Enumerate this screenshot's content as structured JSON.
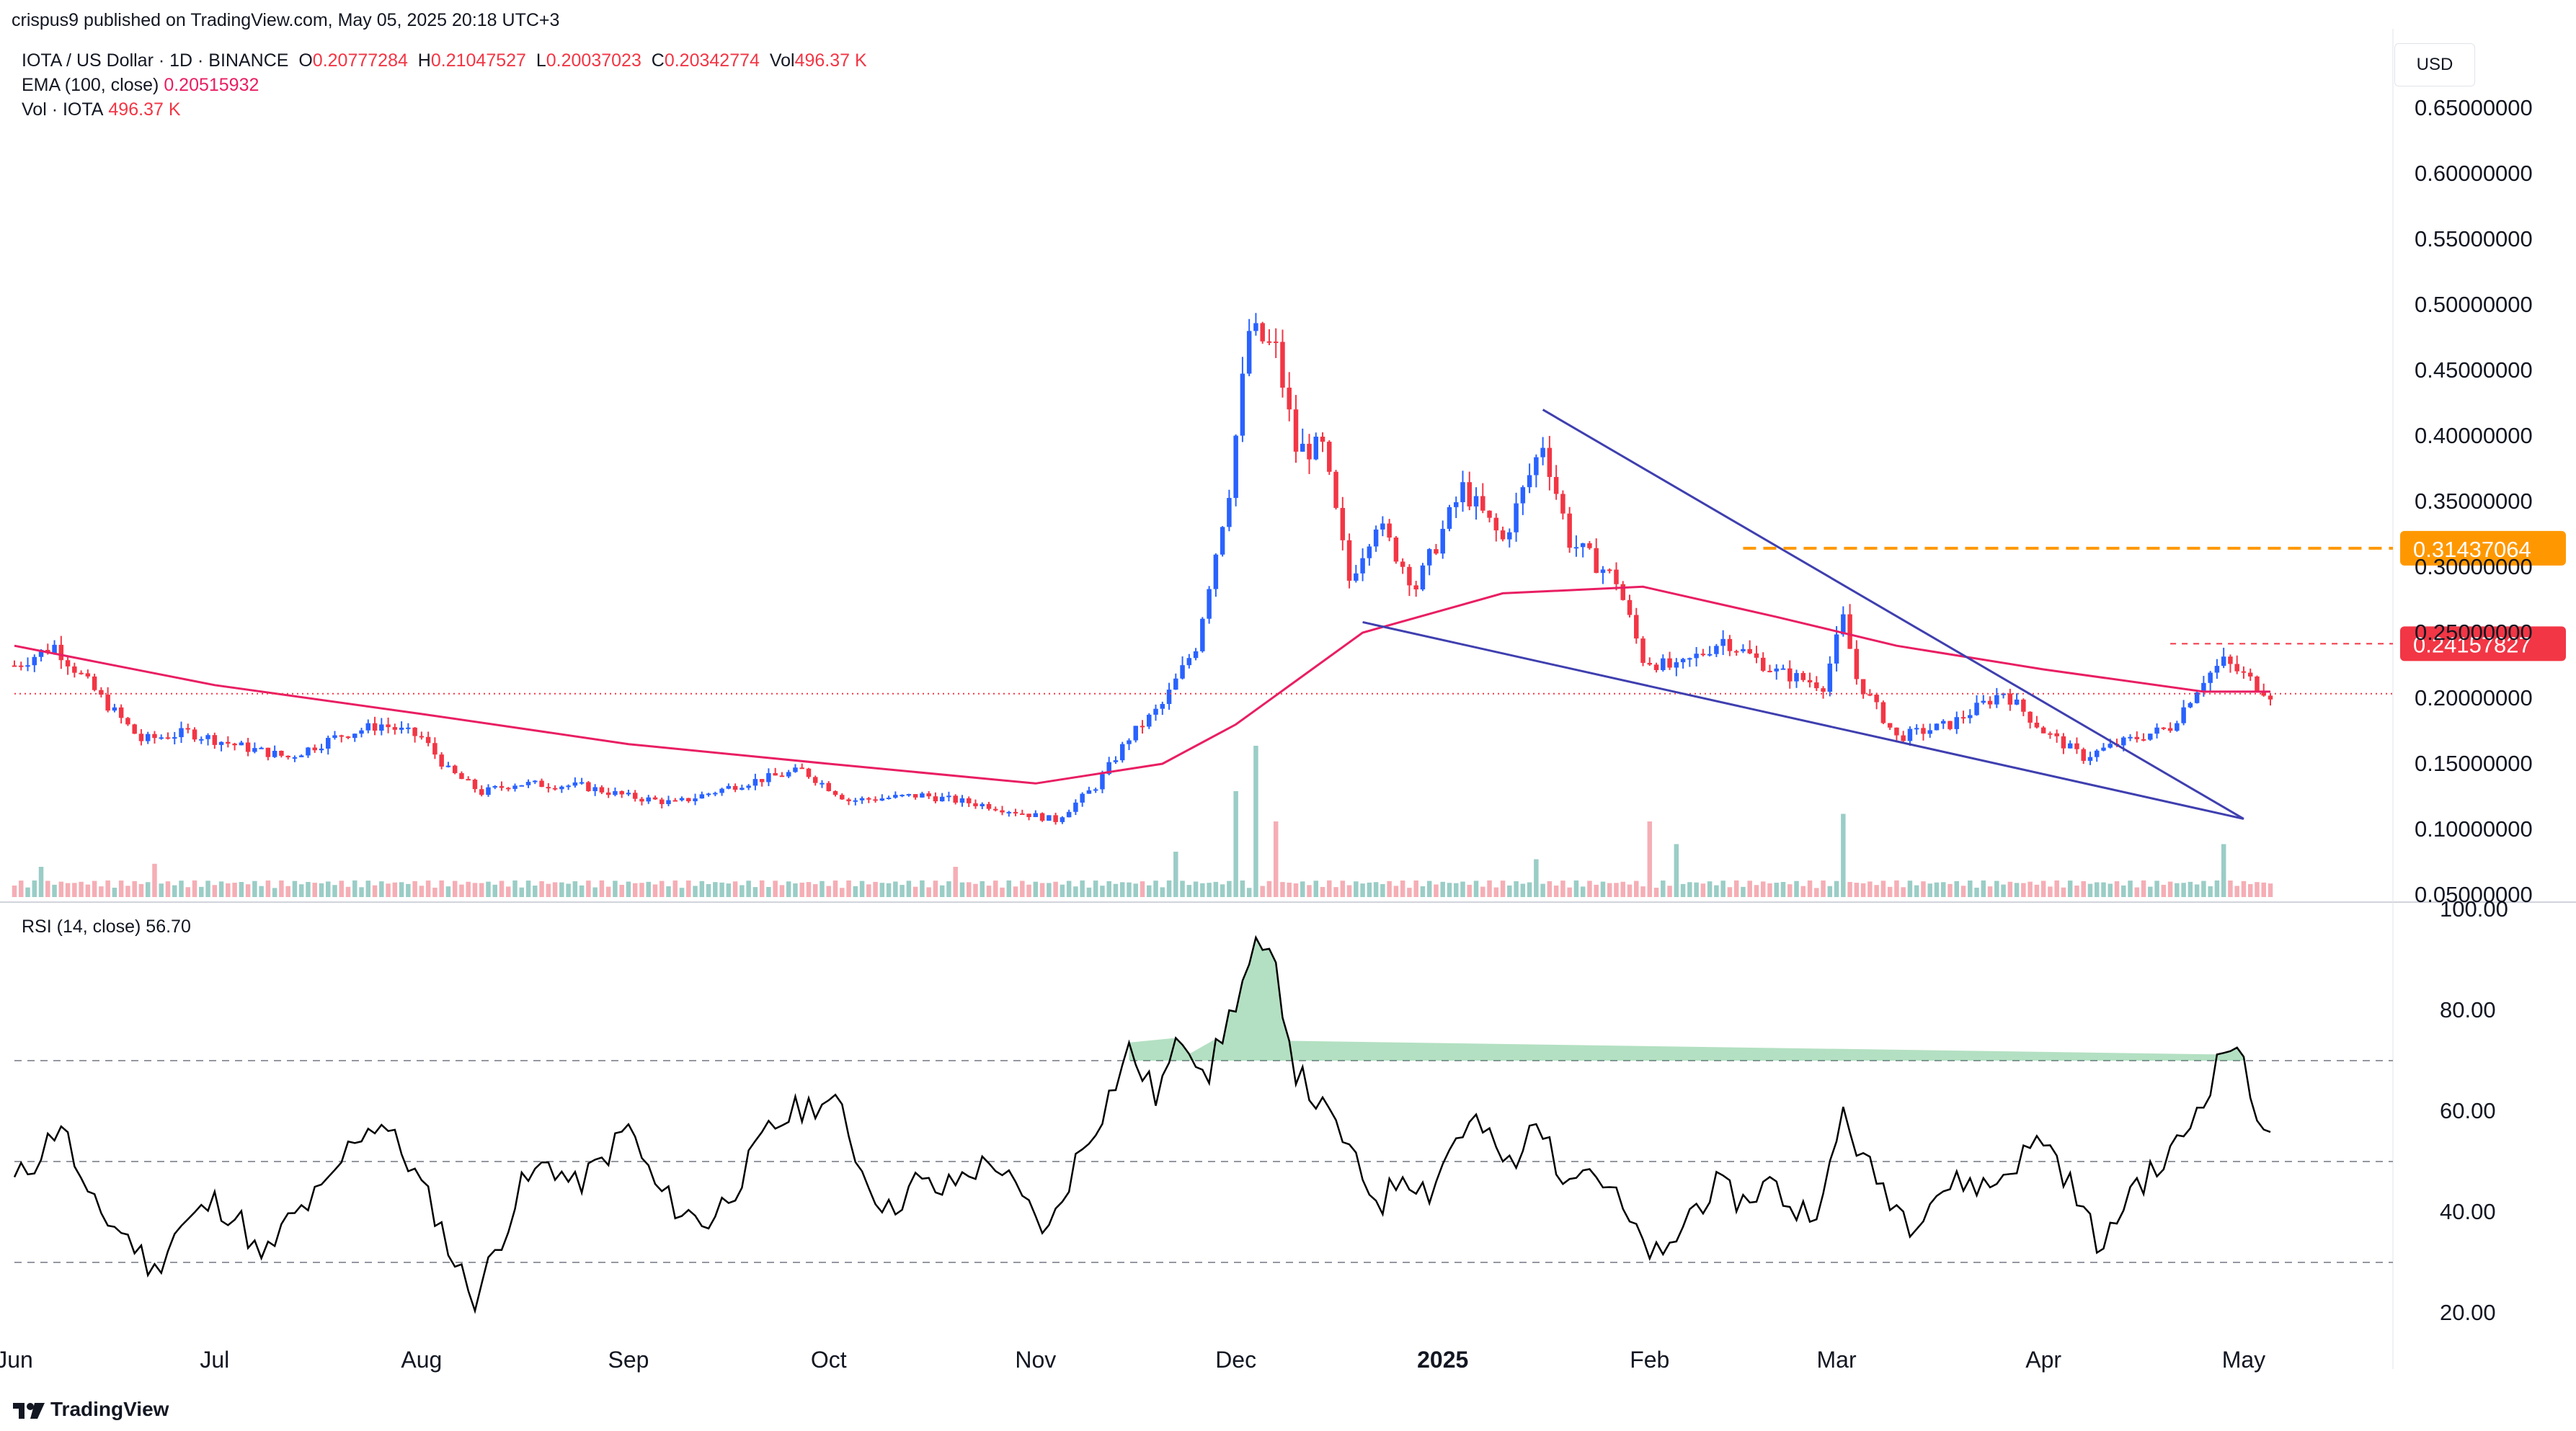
{
  "header": {
    "published": "crispus9 published on TradingView.com, May 05, 2025 20:18 UTC+3",
    "symbol": "IOTA / US Dollar · 1D · BINANCE",
    "ohlc": {
      "o_label": "O",
      "o": "0.20777284",
      "h_label": "H",
      "h": "0.21047527",
      "l_label": "L",
      "l": "0.20037023",
      "c_label": "C",
      "c": "0.20342774",
      "vol_label": "Vol",
      "vol": "496.37 K"
    },
    "ema_label": "EMA (100, close)",
    "ema_value": "0.20515932",
    "vol_label": "Vol · IOTA",
    "vol_value": "496.37 K",
    "currency_button": "USD"
  },
  "footer": {
    "brand": "TradingView"
  },
  "colors": {
    "up": "#2962ff",
    "down": "#f23645",
    "ema": "#e91e63",
    "trendline": "#3f3fb0",
    "level": "#ff9800",
    "rsi": "#000000",
    "rsi_fill": "#26a650"
  },
  "chart_data": [
    {
      "type": "candlestick",
      "title": "IOTA / US Dollar · 1D · BINANCE",
      "x_range": [
        "2024-06-01",
        "2025-05-05"
      ],
      "xticks": [
        {
          "label": "Jun",
          "date": "2024-06-01"
        },
        {
          "label": "Jul",
          "date": "2024-07-01"
        },
        {
          "label": "Aug",
          "date": "2024-08-01"
        },
        {
          "label": "Sep",
          "date": "2024-09-01"
        },
        {
          "label": "Oct",
          "date": "2024-10-01"
        },
        {
          "label": "Nov",
          "date": "2024-11-01"
        },
        {
          "label": "Dec",
          "date": "2024-12-01"
        },
        {
          "label": "2025",
          "date": "2025-01-01"
        },
        {
          "label": "Feb",
          "date": "2025-02-01"
        },
        {
          "label": "Mar",
          "date": "2025-03-01"
        },
        {
          "label": "Apr",
          "date": "2025-04-01"
        },
        {
          "label": "May",
          "date": "2025-05-01"
        }
      ],
      "ylim": [
        0.05,
        0.65
      ],
      "yticks": [
        "0.05000000",
        "0.10000000",
        "0.15000000",
        "0.20000000",
        "0.25000000",
        "0.30000000",
        "0.35000000",
        "0.40000000",
        "0.45000000",
        "0.50000000",
        "0.55000000",
        "0.60000000",
        "0.65000000"
      ],
      "price_path": [
        [
          "2024-06-01",
          0.225
        ],
        [
          "2024-06-07",
          0.24
        ],
        [
          "2024-06-14",
          0.2
        ],
        [
          "2024-06-20",
          0.168
        ],
        [
          "2024-06-27",
          0.174
        ],
        [
          "2024-07-05",
          0.163
        ],
        [
          "2024-07-12",
          0.155
        ],
        [
          "2024-07-20",
          0.172
        ],
        [
          "2024-07-26",
          0.18
        ],
        [
          "2024-08-01",
          0.17
        ],
        [
          "2024-08-05",
          0.145
        ],
        [
          "2024-08-10",
          0.128
        ],
        [
          "2024-08-15",
          0.135
        ],
        [
          "2024-08-25",
          0.133
        ],
        [
          "2024-09-01",
          0.125
        ],
        [
          "2024-09-08",
          0.12
        ],
        [
          "2024-09-18",
          0.135
        ],
        [
          "2024-09-27",
          0.145
        ],
        [
          "2024-10-04",
          0.122
        ],
        [
          "2024-10-15",
          0.126
        ],
        [
          "2024-10-25",
          0.118
        ],
        [
          "2024-11-04",
          0.107
        ],
        [
          "2024-11-10",
          0.133
        ],
        [
          "2024-11-15",
          0.17
        ],
        [
          "2024-11-20",
          0.195
        ],
        [
          "2024-11-25",
          0.24
        ],
        [
          "2024-11-30",
          0.36
        ],
        [
          "2024-12-03",
          0.48
        ],
        [
          "2024-12-07",
          0.465
        ],
        [
          "2024-12-10",
          0.39
        ],
        [
          "2024-12-14",
          0.39
        ],
        [
          "2024-12-18",
          0.29
        ],
        [
          "2024-12-22",
          0.335
        ],
        [
          "2024-12-28",
          0.285
        ],
        [
          "2025-01-04",
          0.36
        ],
        [
          "2025-01-10",
          0.32
        ],
        [
          "2025-01-16",
          0.395
        ],
        [
          "2025-01-20",
          0.32
        ],
        [
          "2025-01-27",
          0.29
        ],
        [
          "2025-01-31",
          0.23
        ],
        [
          "2025-02-05",
          0.222
        ],
        [
          "2025-02-12",
          0.245
        ],
        [
          "2025-02-20",
          0.22
        ],
        [
          "2025-02-27",
          0.21
        ],
        [
          "2025-03-02",
          0.26
        ],
        [
          "2025-03-04",
          0.215
        ],
        [
          "2025-03-10",
          0.17
        ],
        [
          "2025-03-18",
          0.18
        ],
        [
          "2025-03-26",
          0.205
        ],
        [
          "2025-04-01",
          0.175
        ],
        [
          "2025-04-07",
          0.155
        ],
        [
          "2025-04-12",
          0.165
        ],
        [
          "2025-04-20",
          0.178
        ],
        [
          "2025-04-25",
          0.215
        ],
        [
          "2025-04-28",
          0.228
        ],
        [
          "2025-05-05",
          0.203
        ]
      ],
      "ohlc": {
        "open": 0.20777284,
        "high": 0.21047527,
        "low": 0.20037023,
        "close": 0.20342774
      },
      "ema": {
        "name": "EMA (100, close)",
        "value": 0.20515932,
        "path": [
          [
            "2024-06-01",
            0.24
          ],
          [
            "2024-07-01",
            0.21
          ],
          [
            "2024-08-01",
            0.188
          ],
          [
            "2024-09-01",
            0.165
          ],
          [
            "2024-10-01",
            0.15
          ],
          [
            "2024-11-01",
            0.135
          ],
          [
            "2024-11-20",
            0.15
          ],
          [
            "2024-12-01",
            0.18
          ],
          [
            "2024-12-20",
            0.25
          ],
          [
            "2025-01-10",
            0.28
          ],
          [
            "2025-01-31",
            0.285
          ],
          [
            "2025-02-20",
            0.262
          ],
          [
            "2025-03-10",
            0.24
          ],
          [
            "2025-04-01",
            0.222
          ],
          [
            "2025-04-25",
            0.205
          ],
          [
            "2025-05-05",
            0.205
          ]
        ]
      },
      "price_labels": [
        {
          "value": 0.31437064,
          "label": "0.31437064",
          "style": "dashed-orange"
        },
        {
          "value": 0.24157827,
          "label": "0.24157827",
          "style": "dashed-red"
        }
      ],
      "last_price_line": 0.20342774,
      "trendlines": [
        {
          "from": [
            "2025-01-16",
            0.42
          ],
          "to": [
            "2025-05-01",
            0.108
          ]
        },
        {
          "from": [
            "2024-12-20",
            0.258
          ],
          "to": [
            "2025-05-01",
            0.108
          ]
        }
      ],
      "volume": {
        "name": "Vol · IOTA",
        "last": "496.37 K",
        "spikes": [
          [
            "2024-06-05",
            0.2
          ],
          [
            "2024-06-22",
            0.22
          ],
          [
            "2024-10-20",
            0.2
          ],
          [
            "2024-11-22",
            0.3
          ],
          [
            "2024-12-01",
            0.7
          ],
          [
            "2024-12-04",
            1.0
          ],
          [
            "2024-12-07",
            0.5
          ],
          [
            "2025-01-15",
            0.25
          ],
          [
            "2025-02-01",
            0.5
          ],
          [
            "2025-02-05",
            0.35
          ],
          [
            "2025-03-02",
            0.55
          ],
          [
            "2025-04-28",
            0.35
          ]
        ]
      }
    },
    {
      "type": "line",
      "title": "RSI (14, close)",
      "value": "56.70",
      "ylim": [
        20,
        100
      ],
      "yticks": [
        "20.00",
        "40.00",
        "60.00",
        "80.00",
        "100.00"
      ],
      "bands": [
        30,
        50,
        70
      ],
      "series": [
        [
          "2024-06-01",
          46
        ],
        [
          "2024-06-04",
          50
        ],
        [
          "2024-06-08",
          58
        ],
        [
          "2024-06-12",
          42
        ],
        [
          "2024-06-18",
          35
        ],
        [
          "2024-06-22",
          28
        ],
        [
          "2024-06-25",
          36
        ],
        [
          "2024-07-01",
          42
        ],
        [
          "2024-07-05",
          38
        ],
        [
          "2024-07-08",
          30
        ],
        [
          "2024-07-12",
          38
        ],
        [
          "2024-07-18",
          45
        ],
        [
          "2024-07-22",
          55
        ],
        [
          "2024-07-26",
          58
        ],
        [
          "2024-07-30",
          50
        ],
        [
          "2024-08-03",
          40
        ],
        [
          "2024-08-06",
          30
        ],
        [
          "2024-08-09",
          23
        ],
        [
          "2024-08-12",
          32
        ],
        [
          "2024-08-16",
          45
        ],
        [
          "2024-08-20",
          50
        ],
        [
          "2024-08-24",
          45
        ],
        [
          "2024-08-28",
          50
        ],
        [
          "2024-09-01",
          57
        ],
        [
          "2024-09-05",
          45
        ],
        [
          "2024-09-09",
          40
        ],
        [
          "2024-09-13",
          38
        ],
        [
          "2024-09-17",
          45
        ],
        [
          "2024-09-22",
          56
        ],
        [
          "2024-09-26",
          60
        ],
        [
          "2024-09-30",
          62
        ],
        [
          "2024-10-03",
          60
        ],
        [
          "2024-10-06",
          48
        ],
        [
          "2024-10-10",
          40
        ],
        [
          "2024-10-14",
          46
        ],
        [
          "2024-10-18",
          44
        ],
        [
          "2024-10-22",
          48
        ],
        [
          "2024-10-26",
          50
        ],
        [
          "2024-10-30",
          42
        ],
        [
          "2024-11-03",
          36
        ],
        [
          "2024-11-07",
          50
        ],
        [
          "2024-11-11",
          60
        ],
        [
          "2024-11-15",
          72
        ],
        [
          "2024-11-19",
          63
        ],
        [
          "2024-11-23",
          75
        ],
        [
          "2024-11-27",
          68
        ],
        [
          "2024-12-01",
          82
        ],
        [
          "2024-12-04",
          92
        ],
        [
          "2024-12-07",
          88
        ],
        [
          "2024-12-10",
          68
        ],
        [
          "2024-12-13",
          62
        ],
        [
          "2024-12-17",
          55
        ],
        [
          "2024-12-20",
          46
        ],
        [
          "2024-12-23",
          42
        ],
        [
          "2024-12-26",
          48
        ],
        [
          "2024-12-30",
          44
        ],
        [
          "2025-01-03",
          55
        ],
        [
          "2025-01-06",
          58
        ],
        [
          "2025-01-09",
          52
        ],
        [
          "2025-01-12",
          48
        ],
        [
          "2025-01-15",
          60
        ],
        [
          "2025-01-18",
          48
        ],
        [
          "2025-01-22",
          50
        ],
        [
          "2025-01-26",
          45
        ],
        [
          "2025-01-30",
          35
        ],
        [
          "2025-02-03",
          30
        ],
        [
          "2025-02-07",
          40
        ],
        [
          "2025-02-11",
          45
        ],
        [
          "2025-02-15",
          42
        ],
        [
          "2025-02-19",
          46
        ],
        [
          "2025-02-23",
          40
        ],
        [
          "2025-02-27",
          42
        ],
        [
          "2025-03-02",
          60
        ],
        [
          "2025-03-05",
          50
        ],
        [
          "2025-03-08",
          45
        ],
        [
          "2025-03-12",
          38
        ],
        [
          "2025-03-16",
          44
        ],
        [
          "2025-03-20",
          46
        ],
        [
          "2025-03-24",
          45
        ],
        [
          "2025-03-28",
          50
        ],
        [
          "2025-04-01",
          55
        ],
        [
          "2025-04-04",
          48
        ],
        [
          "2025-04-07",
          40
        ],
        [
          "2025-04-10",
          32
        ],
        [
          "2025-04-14",
          45
        ],
        [
          "2025-04-18",
          48
        ],
        [
          "2025-04-22",
          55
        ],
        [
          "2025-04-26",
          66
        ],
        [
          "2025-04-28",
          72
        ],
        [
          "2025-04-30",
          74
        ],
        [
          "2025-05-02",
          62
        ],
        [
          "2025-05-05",
          57
        ]
      ]
    }
  ]
}
